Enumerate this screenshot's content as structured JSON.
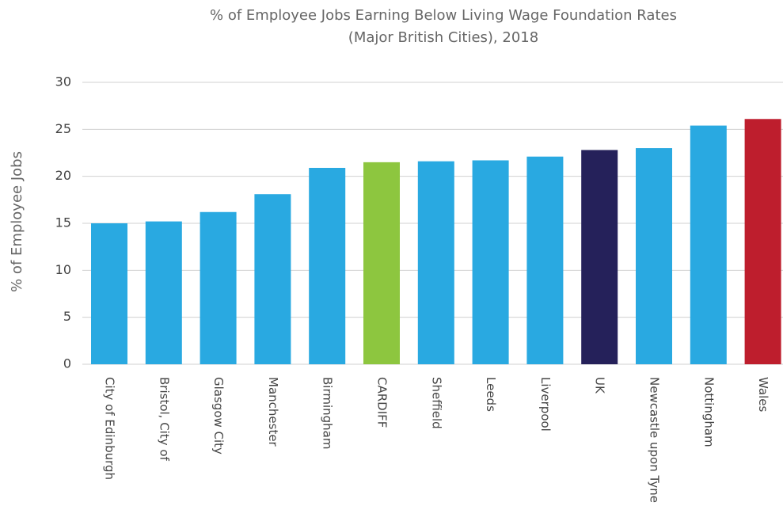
{
  "chart_data": {
    "type": "bar",
    "title": "% of Employee Jobs Earning Below Living Wage Foundation Rates",
    "subtitle": "(Major British Cities), 2018",
    "y_label": "% of Employee Jobs",
    "categories": [
      "City of Edinburgh",
      "Bristol, City of",
      "Glasgow City",
      "Manchester",
      "Birmingham",
      "CARDIFF",
      "Sheffield",
      "Leeds",
      "Liverpool",
      "UK",
      "Newcastle upon Tyne",
      "Nottingham",
      "Wales"
    ],
    "values": [
      15.0,
      15.2,
      16.2,
      18.1,
      20.9,
      21.5,
      21.6,
      21.7,
      22.1,
      22.8,
      23.0,
      25.4,
      26.1
    ],
    "colors": [
      "#29a9e1",
      "#29a9e1",
      "#29a9e1",
      "#29a9e1",
      "#29a9e1",
      "#8dc63f",
      "#29a9e1",
      "#29a9e1",
      "#29a9e1",
      "#25215a",
      "#29a9e1",
      "#29a9e1",
      "#be1e2d"
    ],
    "ylim": [
      0,
      30
    ],
    "yticks": [
      0,
      5,
      10,
      15,
      20,
      25,
      30
    ],
    "grid": true
  }
}
